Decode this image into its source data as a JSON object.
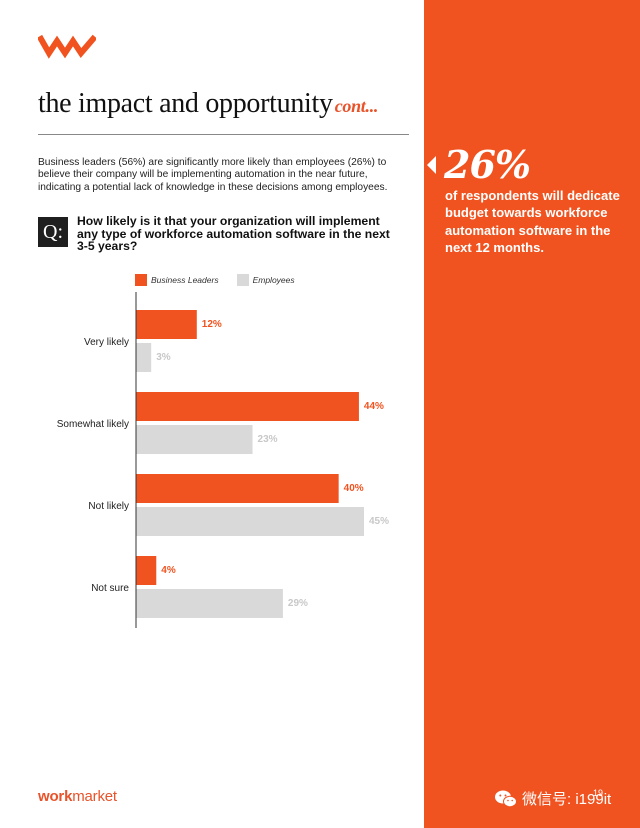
{
  "header": {
    "title": "the impact and opportunity",
    "title_suffix": "cont..."
  },
  "intro_text": "Business leaders (56%) are significantly more likely than employees (26%) to believe their company will be implementing automation in the near future, indicating a potential lack of knowledge in these decisions among employees.",
  "question": {
    "badge": "Q:",
    "text": "How likely is it that your organization will implement any type of workforce automation software in the next 3-5 years?"
  },
  "colors": {
    "accent": "#f0531f",
    "leaders": "#f0531f",
    "employees": "#d9d9d9",
    "employees_label": "#c8c8c8"
  },
  "chart_data": {
    "type": "bar",
    "orientation": "horizontal",
    "categories": [
      "Very likely",
      "Somewhat likely",
      "Not likely",
      "Not sure"
    ],
    "series": [
      {
        "name": "Business Leaders",
        "values": [
          12,
          44,
          40,
          4
        ],
        "labels": [
          "12%",
          "44%",
          "40%",
          "4%"
        ]
      },
      {
        "name": "Employees",
        "values": [
          3,
          23,
          45,
          29
        ],
        "labels": [
          "3%",
          "23%",
          "45%",
          "29%"
        ]
      }
    ],
    "xlim": [
      0,
      45
    ],
    "grid": false,
    "legend": "top-left"
  },
  "sidebar": {
    "stat": "26%",
    "stat_text": "of respondents will dedicate budget towards workforce automation software in the next 12 months."
  },
  "footer": {
    "brand_work": "work",
    "brand_market": "market",
    "watermark": "微信号: i199it",
    "page_number": "19"
  }
}
